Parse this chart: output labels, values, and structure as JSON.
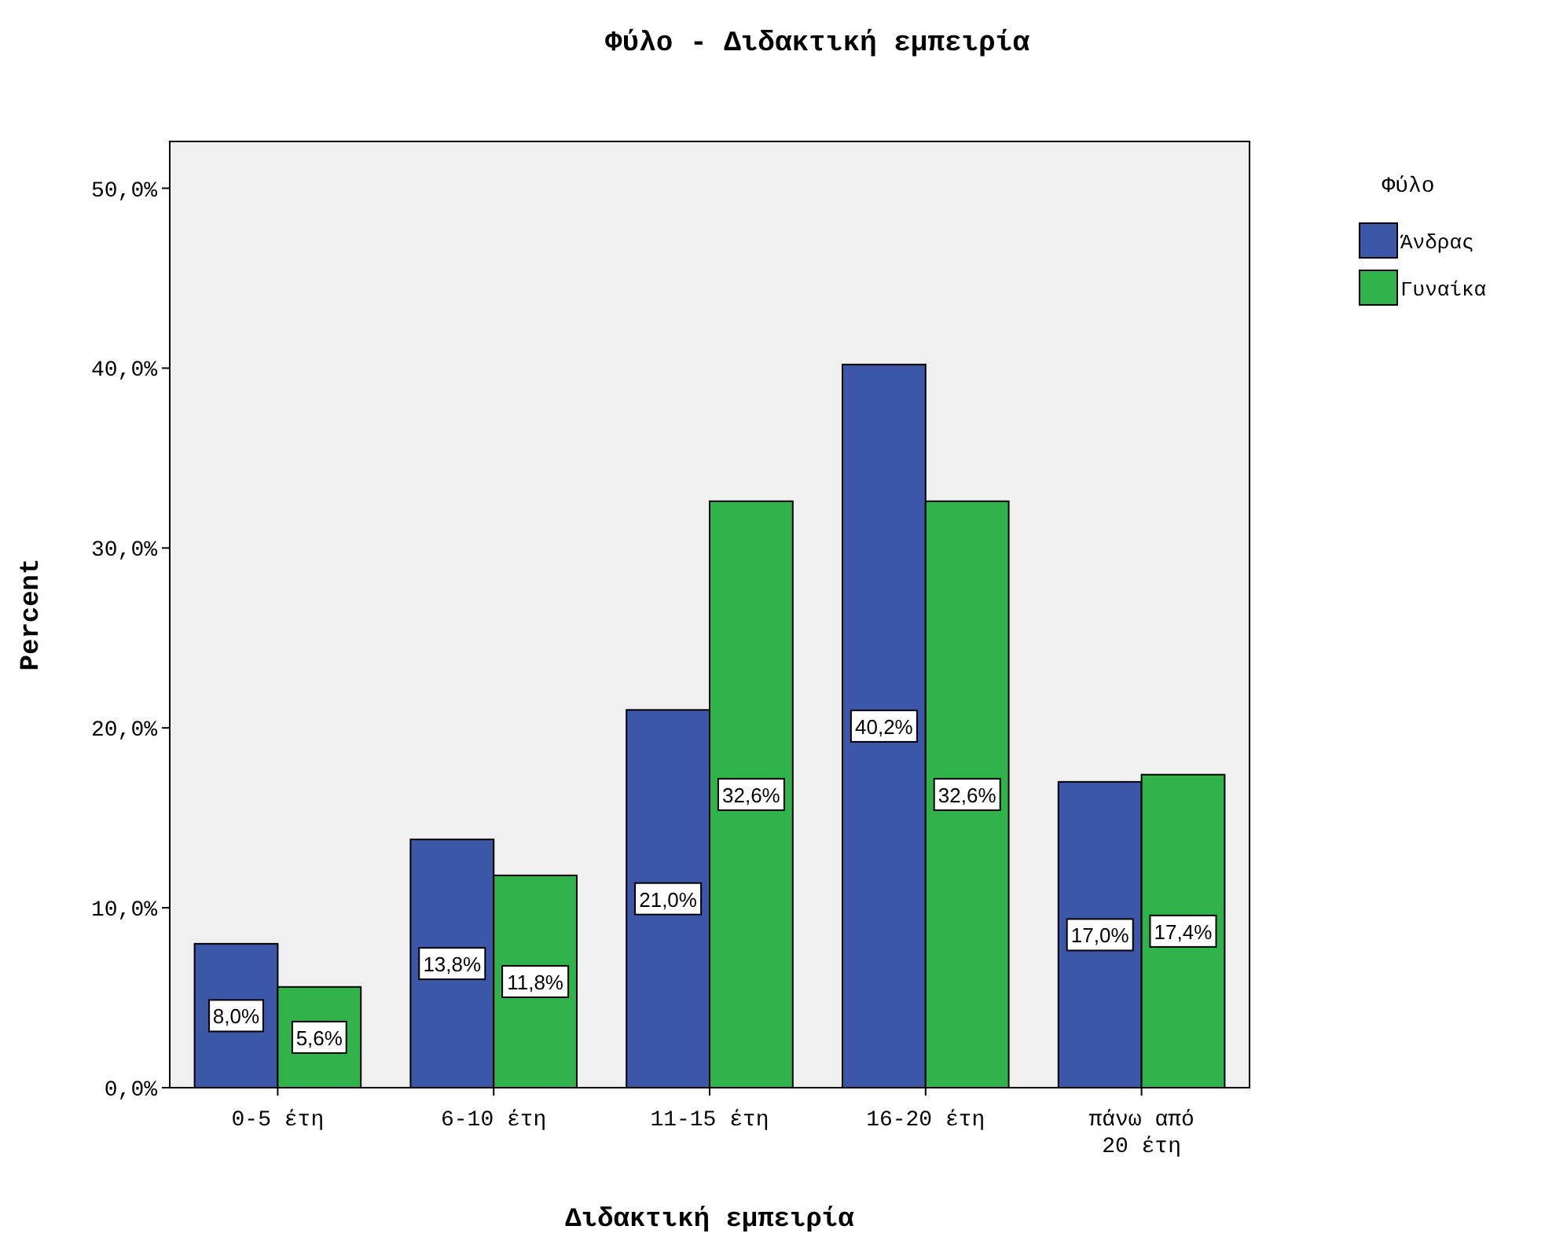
{
  "chart_data": {
    "type": "bar",
    "title": "Φύλο - Διδακτική εμπειρία",
    "xlabel": "Διδακτική εμπειρία",
    "ylabel": "Percent",
    "legend_title": "Φύλο",
    "legend": "top right",
    "grid": false,
    "categories": [
      "0-5 έτη",
      "6-10 έτη",
      "11-15 έτη",
      "16-20 έτη",
      "πάνω από 20 έτη"
    ],
    "series": [
      {
        "name": "Άνδρας",
        "color": "#3c57a8",
        "values": [
          8.0,
          13.8,
          21.0,
          40.2,
          17.0
        ],
        "value_labels": [
          "8,0%",
          "13,8%",
          "21,0%",
          "40,2%",
          "17,0%"
        ]
      },
      {
        "name": "Γυναίκα",
        "color": "#2fb34a",
        "values": [
          5.6,
          11.8,
          32.6,
          32.6,
          17.4
        ],
        "value_labels": [
          "5,6%",
          "11,8%",
          "32,6%",
          "32,6%",
          "17,4%"
        ]
      }
    ],
    "ylim": [
      0,
      52.6
    ],
    "yticks": [
      {
        "value": 0,
        "label": "0,0%"
      },
      {
        "value": 10,
        "label": "10,0%"
      },
      {
        "value": 20,
        "label": "20,0%"
      },
      {
        "value": 30,
        "label": "30,0%"
      },
      {
        "value": 40,
        "label": "40,0%"
      },
      {
        "value": 50,
        "label": "50,0%"
      }
    ]
  }
}
